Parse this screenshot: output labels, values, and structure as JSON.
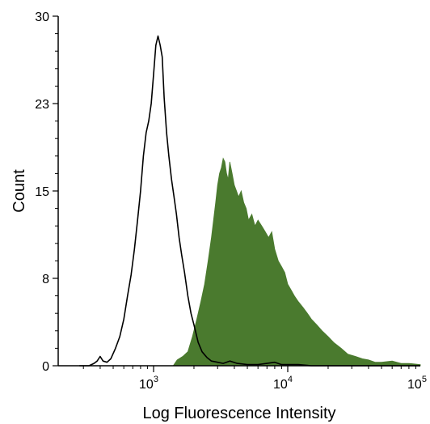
{
  "chart_data": {
    "type": "area",
    "xlabel": "Log Fluorescence Intensity",
    "ylabel": "Count",
    "xscale": "log",
    "xlim": [
      250,
      100000
    ],
    "ylim": [
      0,
      30
    ],
    "y_ticks": [
      {
        "value": 0,
        "label": "0"
      },
      {
        "value": 7.5,
        "label": "8"
      },
      {
        "value": 15,
        "label": "15"
      },
      {
        "value": 22.5,
        "label": "23"
      },
      {
        "value": 30,
        "label": "30"
      }
    ],
    "x_ticks": [
      {
        "value": 1000,
        "base": "10",
        "exp": "3"
      },
      {
        "value": 10000,
        "base": "10",
        "exp": "4"
      },
      {
        "value": 100000,
        "base": "10",
        "exp": "5"
      }
    ],
    "grid": false,
    "legend": "none",
    "series": [
      {
        "style": "outline",
        "color": "#000000",
        "x": [
          280,
          330,
          360,
          380,
          400,
          420,
          450,
          480,
          520,
          560,
          600,
          640,
          680,
          720,
          760,
          800,
          840,
          880,
          920,
          960,
          1000,
          1040,
          1080,
          1120,
          1160,
          1200,
          1250,
          1300,
          1360,
          1420,
          1480,
          1550,
          1620,
          1700,
          1800,
          1900,
          2000,
          2150,
          2300,
          2500,
          2700,
          3000,
          3300,
          3700,
          4200,
          5000,
          6000,
          7000,
          8000,
          9000,
          10000,
          12000,
          15000,
          20000,
          30000,
          50000,
          80000,
          100000
        ],
        "y": [
          0,
          0,
          0.2,
          0.4,
          0.8,
          0.4,
          0.3,
          0.6,
          1.5,
          2.5,
          4,
          6,
          7.8,
          10,
          12.5,
          15,
          18,
          20,
          21,
          22.5,
          25,
          27.5,
          28.3,
          27.5,
          26.5,
          23,
          20,
          18,
          16,
          14.5,
          13,
          11,
          9.5,
          8,
          6,
          4.5,
          3.5,
          2,
          1.2,
          0.7,
          0.4,
          0.3,
          0.2,
          0.4,
          0.2,
          0.1,
          0.1,
          0.2,
          0.3,
          0.1,
          0.1,
          0.1,
          0,
          0,
          0,
          0,
          0,
          0
        ]
      },
      {
        "style": "filled",
        "color": "#4a7a2e",
        "x": [
          1400,
          1500,
          1650,
          1800,
          1950,
          2100,
          2250,
          2400,
          2550,
          2700,
          2800,
          2900,
          3000,
          3100,
          3200,
          3300,
          3400,
          3500,
          3600,
          3700,
          3850,
          4000,
          4150,
          4300,
          4500,
          4700,
          4900,
          5100,
          5400,
          5700,
          6000,
          6400,
          6800,
          7200,
          7600,
          8000,
          8500,
          9000,
          9500,
          10000,
          10600,
          11200,
          12000,
          13000,
          14000,
          15000,
          16500,
          18000,
          20000,
          22000,
          25000,
          28000,
          32000,
          36000,
          40000,
          45000,
          50000,
          60000,
          70000,
          80000,
          100000
        ],
        "y": [
          0,
          0.5,
          0.8,
          1.2,
          2.5,
          4,
          5.5,
          7,
          9,
          11,
          12.5,
          14,
          15.5,
          16.5,
          17,
          17.8,
          17.5,
          16.5,
          16,
          17.5,
          16.5,
          15.5,
          15,
          14.5,
          15,
          14,
          13.5,
          12.5,
          13,
          12,
          12.5,
          12,
          11.5,
          11,
          11.5,
          10,
          9,
          8.5,
          8,
          7,
          6.5,
          6,
          5.5,
          5,
          4.5,
          4,
          3.5,
          3,
          2.5,
          2,
          1.5,
          1,
          0.8,
          0.6,
          0.5,
          0.3,
          0.3,
          0.4,
          0.2,
          0.2,
          0.1
        ]
      }
    ]
  }
}
